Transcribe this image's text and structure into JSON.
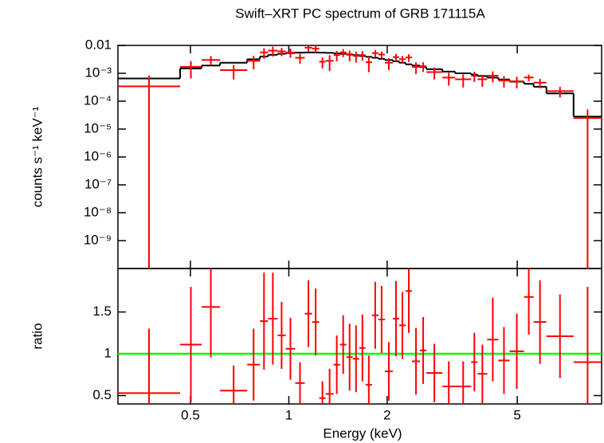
{
  "chart_data": [
    {
      "type": "spectrum",
      "title": "Swift–XRT PC spectrum of GRB 171115A",
      "ylabel": "counts s⁻¹ keV⁻¹",
      "log_y": true,
      "ylim": [
        1e-10,
        0.01
      ],
      "yticks": [
        0.01,
        {
          "value": 0.001,
          "label": "10⁻³"
        },
        {
          "value": 0.0001,
          "label": "10⁻⁴"
        },
        {
          "value": 1e-05,
          "label": "10⁻⁵"
        },
        {
          "value": 1e-06,
          "label": "10⁻⁶"
        },
        {
          "value": 1e-07,
          "label": "10⁻⁷"
        },
        {
          "value": 1e-08,
          "label": "10⁻⁸"
        },
        {
          "value": 1e-09,
          "label": "10⁻⁹"
        }
      ],
      "bins": [
        0.3,
        0.465,
        0.541,
        0.616,
        0.746,
        0.816,
        0.864,
        0.924,
        0.978,
        1.046,
        1.119,
        1.178,
        1.239,
        1.296,
        1.371,
        1.434,
        1.5,
        1.57,
        1.642,
        1.718,
        1.797,
        1.88,
        1.967,
        2.081,
        2.176,
        2.277,
        2.382,
        2.52,
        2.636,
        2.951,
        3.229,
        3.614,
        3.78,
        4.046,
        4.377,
        4.737,
        5.244,
        5.61,
        6.14,
        7.436,
        9.06
      ],
      "data": {
        "color": "#ff0000",
        "values": [
          0.00034,
          0.0017,
          0.003,
          0.0013,
          0.0028,
          0.0056,
          0.0065,
          0.0061,
          0.0056,
          0.0036,
          0.0083,
          0.0077,
          0.0026,
          0.0028,
          0.0045,
          0.0056,
          0.0046,
          0.0042,
          0.0045,
          0.0025,
          0.0053,
          0.0047,
          0.0024,
          0.0038,
          0.0032,
          0.0037,
          0.0017,
          0.0018,
          0.0011,
          0.0007,
          0.00061,
          0.00081,
          0.00061,
          0.00082,
          0.00055,
          0.00052,
          0.00071,
          0.00046,
          0.00023,
          2.5e-05
        ],
        "errors": [
          0.00049,
          0.00105,
          0.00115,
          0.0007,
          0.0014,
          0.0023,
          0.0025,
          0.002,
          0.002,
          0.0014,
          0.0022,
          0.0022,
          0.0011,
          0.0016,
          0.0018,
          0.0018,
          0.0019,
          0.0018,
          0.0017,
          0.0014,
          0.0014,
          0.0013,
          0.0011,
          0.0012,
          0.00096,
          0.0011,
          0.00075,
          0.00069,
          0.0005,
          0.00034,
          0.0003,
          0.00032,
          0.00028,
          0.00035,
          0.00024,
          0.00023,
          0.00019,
          0.00017,
          9.4e-05,
          2.5e-05
        ]
      },
      "model": {
        "color": "#000000",
        "values": [
          0.00065,
          0.0015,
          0.0019,
          0.0024,
          0.0032,
          0.004,
          0.0046,
          0.005,
          0.0053,
          0.0055,
          0.0056,
          0.0056,
          0.0055,
          0.0054,
          0.0052,
          0.005,
          0.0048,
          0.0045,
          0.0042,
          0.0039,
          0.0036,
          0.0033,
          0.003,
          0.0027,
          0.0024,
          0.0021,
          0.0019,
          0.0017,
          0.0014,
          0.00115,
          0.001,
          0.0009,
          0.0008,
          0.0007,
          0.0006,
          0.0005,
          0.00042,
          0.00033,
          0.00019,
          2.8e-05
        ]
      }
    },
    {
      "type": "ratio",
      "xlabel": "Energy (keV)",
      "ylabel": "ratio",
      "log_x": true,
      "xlim": [
        0.3,
        9.06
      ],
      "xticks": [
        0.5,
        1,
        2,
        5
      ],
      "ylim": [
        0.4,
        2.02
      ],
      "yticks": [
        0.5,
        1,
        1.5
      ],
      "color": "#ff0000",
      "values": [
        0.53,
        1.11,
        1.56,
        0.56,
        0.87,
        1.39,
        1.42,
        1.22,
        1.06,
        0.65,
        1.48,
        1.38,
        0.47,
        0.52,
        0.87,
        1.11,
        0.96,
        0.94,
        1.07,
        0.63,
        1.46,
        1.41,
        0.79,
        1.42,
        1.34,
        1.75,
        0.91,
        1.04,
        0.77,
        0.61,
        0.61,
        0.9,
        0.76,
        1.17,
        0.92,
        1.03,
        1.68,
        1.38,
        1.21,
        0.9
      ],
      "errors": [
        0.77,
        0.69,
        0.6,
        0.3,
        0.43,
        0.58,
        0.55,
        0.4,
        0.37,
        0.25,
        0.4,
        0.4,
        0.2,
        0.3,
        0.35,
        0.35,
        0.4,
        0.4,
        0.4,
        0.35,
        0.4,
        0.4,
        0.35,
        0.45,
        0.4,
        0.5,
        0.4,
        0.4,
        0.35,
        0.3,
        0.3,
        0.35,
        0.35,
        0.5,
        0.4,
        0.45,
        0.45,
        0.5,
        0.5,
        0.9
      ],
      "reference_line": {
        "value": 1,
        "color": "#00ff00"
      }
    }
  ]
}
